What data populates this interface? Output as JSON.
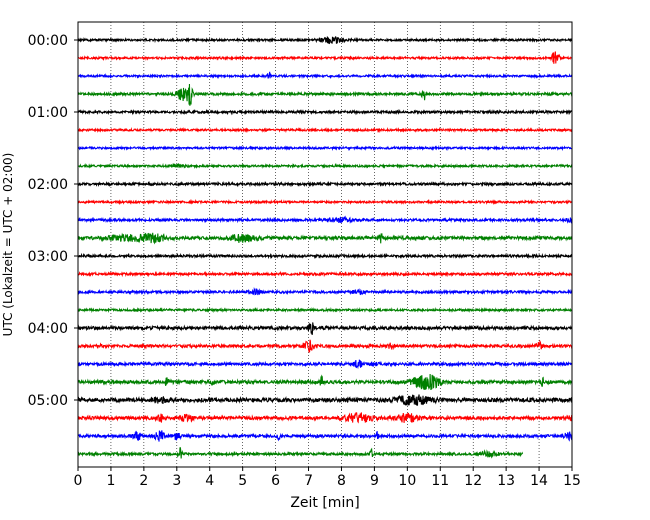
{
  "chart_data": {
    "type": "line",
    "title": "",
    "xlabel": "Zeit  [min]",
    "ylabel": "UTC (Lokalzeit = UTC + 02:00)",
    "xlim": [
      0,
      15
    ],
    "x_ticks": [
      0,
      1,
      2,
      3,
      4,
      5,
      6,
      7,
      8,
      9,
      10,
      11,
      12,
      13,
      14,
      15
    ],
    "x_tick_labels": [
      "0",
      "1",
      "2",
      "3",
      "4",
      "5",
      "6",
      "7",
      "8",
      "9",
      "10",
      "11",
      "12",
      "13",
      "14",
      "15"
    ],
    "y_ticks_hours": [
      0,
      1,
      2,
      3,
      4,
      5
    ],
    "y_tick_labels": [
      "00:00",
      "01:00",
      "02:00",
      "03:00",
      "04:00",
      "05:00"
    ],
    "rows_per_hour": 4,
    "row_duration_min": 15,
    "grid": "vertical dotted lines at each minute",
    "trace_colors": [
      "#000000",
      "#ff0000",
      "#0000ff",
      "#008000"
    ],
    "traces": [
      {
        "row": 0,
        "color": "#000000",
        "end": 15,
        "noise": 0.25,
        "events": [
          [
            7.7,
            0.8,
            0.35
          ]
        ]
      },
      {
        "row": 1,
        "color": "#ff0000",
        "end": 15,
        "noise": 0.25,
        "events": [
          [
            14.5,
            1.8,
            0.1
          ]
        ]
      },
      {
        "row": 2,
        "color": "#0000ff",
        "end": 15,
        "noise": 0.25,
        "events": [
          [
            5.8,
            1.0,
            0.05
          ]
        ]
      },
      {
        "row": 3,
        "color": "#008000",
        "end": 15,
        "noise": 0.3,
        "events": [
          [
            3.2,
            1.6,
            0.2
          ],
          [
            3.4,
            3.0,
            0.06
          ],
          [
            10.5,
            1.5,
            0.06
          ]
        ]
      },
      {
        "row": 4,
        "color": "#000000",
        "end": 15,
        "noise": 0.3,
        "events": []
      },
      {
        "row": 5,
        "color": "#ff0000",
        "end": 15,
        "noise": 0.25,
        "events": []
      },
      {
        "row": 6,
        "color": "#0000ff",
        "end": 15,
        "noise": 0.25,
        "events": []
      },
      {
        "row": 7,
        "color": "#008000",
        "end": 15,
        "noise": 0.25,
        "events": [
          [
            3.0,
            0.5,
            0.2
          ]
        ]
      },
      {
        "row": 8,
        "color": "#000000",
        "end": 15,
        "noise": 0.3,
        "events": []
      },
      {
        "row": 9,
        "color": "#ff0000",
        "end": 15,
        "noise": 0.25,
        "events": []
      },
      {
        "row": 10,
        "color": "#0000ff",
        "end": 15,
        "noise": 0.3,
        "events": [
          [
            8.0,
            0.5,
            0.4
          ],
          [
            15.0,
            0.6,
            0.15
          ]
        ]
      },
      {
        "row": 11,
        "color": "#008000",
        "end": 15,
        "noise": 0.4,
        "events": [
          [
            1.5,
            0.6,
            0.6
          ],
          [
            2.3,
            0.8,
            0.4
          ],
          [
            5.0,
            0.9,
            0.4
          ],
          [
            9.2,
            1.0,
            0.05
          ]
        ]
      },
      {
        "row": 12,
        "color": "#000000",
        "end": 15,
        "noise": 0.3,
        "events": []
      },
      {
        "row": 13,
        "color": "#ff0000",
        "end": 15,
        "noise": 0.3,
        "events": []
      },
      {
        "row": 14,
        "color": "#0000ff",
        "end": 15,
        "noise": 0.3,
        "events": [
          [
            5.4,
            0.6,
            0.15
          ],
          [
            8.5,
            0.4,
            0.2
          ]
        ]
      },
      {
        "row": 15,
        "color": "#008000",
        "end": 15,
        "noise": 0.25,
        "events": []
      },
      {
        "row": 16,
        "color": "#000000",
        "end": 15,
        "noise": 0.4,
        "events": [
          [
            7.1,
            1.2,
            0.1
          ]
        ]
      },
      {
        "row": 17,
        "color": "#ff0000",
        "end": 15,
        "noise": 0.35,
        "events": [
          [
            0.7,
            0.8,
            0.05
          ],
          [
            2.0,
            0.6,
            0.05
          ],
          [
            7.0,
            1.4,
            0.15
          ],
          [
            9.5,
            0.6,
            0.1
          ],
          [
            14.0,
            0.9,
            0.08
          ]
        ]
      },
      {
        "row": 18,
        "color": "#0000ff",
        "end": 15,
        "noise": 0.35,
        "events": [
          [
            8.5,
            0.8,
            0.15
          ],
          [
            9.0,
            0.5,
            0.1
          ]
        ]
      },
      {
        "row": 19,
        "color": "#008000",
        "end": 15,
        "noise": 0.4,
        "events": [
          [
            2.7,
            1.0,
            0.05
          ],
          [
            4.1,
            0.9,
            0.05
          ],
          [
            7.4,
            1.3,
            0.05
          ],
          [
            10.4,
            1.1,
            0.3
          ],
          [
            10.7,
            1.3,
            0.3
          ],
          [
            14.1,
            1.0,
            0.05
          ]
        ]
      },
      {
        "row": 20,
        "color": "#000000",
        "end": 15,
        "noise": 0.5,
        "events": [
          [
            2.5,
            0.6,
            0.2
          ],
          [
            10.2,
            1.0,
            0.5
          ]
        ]
      },
      {
        "row": 21,
        "color": "#ff0000",
        "end": 15,
        "noise": 0.4,
        "events": [
          [
            2.5,
            0.9,
            0.1
          ],
          [
            3.3,
            0.7,
            0.2
          ],
          [
            8.5,
            1.1,
            0.4
          ],
          [
            10.0,
            1.0,
            0.3
          ],
          [
            15.0,
            0.6,
            0.1
          ]
        ]
      },
      {
        "row": 22,
        "color": "#0000ff",
        "end": 15,
        "noise": 0.35,
        "events": [
          [
            1.8,
            1.2,
            0.1
          ],
          [
            2.5,
            1.2,
            0.15
          ],
          [
            3.0,
            0.8,
            0.1
          ],
          [
            6.1,
            0.7,
            0.05
          ],
          [
            9.1,
            1.0,
            0.05
          ],
          [
            14.9,
            0.8,
            0.15
          ]
        ]
      },
      {
        "row": 23,
        "color": "#008000",
        "end": 13.5,
        "noise": 0.3,
        "events": [
          [
            3.1,
            1.3,
            0.05
          ],
          [
            8.9,
            1.2,
            0.05
          ],
          [
            12.5,
            0.6,
            0.3
          ]
        ]
      }
    ]
  }
}
